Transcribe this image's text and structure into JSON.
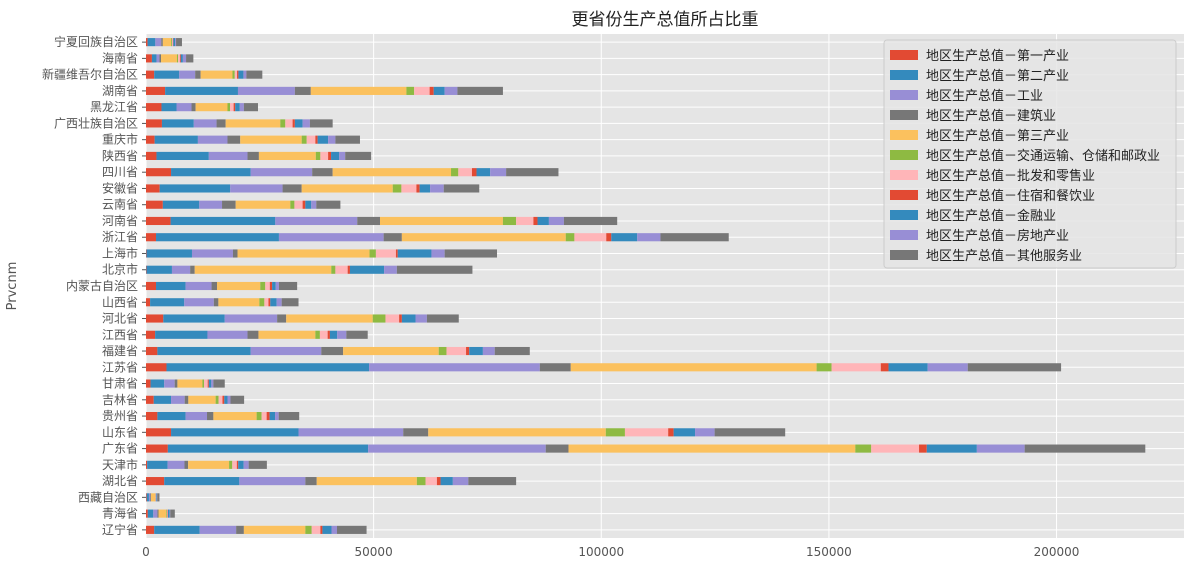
{
  "chart_data": {
    "type": "bar",
    "orientation": "horizontal",
    "stacked": true,
    "title": "更省份生产总值所占比重",
    "xlabel": "",
    "ylabel": "Prvcnm",
    "xlim": [
      0,
      228000
    ],
    "xticks": [
      0,
      50000,
      100000,
      150000,
      200000
    ],
    "grid": true,
    "legend_position": "top-right",
    "categories": [
      "辽宁省",
      "青海省",
      "西藏自治区",
      "湖北省",
      "天津市",
      "广东省",
      "山东省",
      "贵州省",
      "吉林省",
      "甘肃省",
      "江苏省",
      "福建省",
      "江西省",
      "河北省",
      "山西省",
      "内蒙古自治区",
      "北京市",
      "上海市",
      "浙江省",
      "河南省",
      "云南省",
      "安徽省",
      "四川省",
      "陕西省",
      "重庆市",
      "广西壮族自治区",
      "黑龙江省",
      "湖南省",
      "新疆维吾尔自治区",
      "海南省",
      "宁夏回族自治区"
    ],
    "series": [
      {
        "name": "地区生产总值－第一产业",
        "color": "#E24A33",
        "values": [
          1800,
          400,
          150,
          4000,
          250,
          4800,
          5500,
          2500,
          1700,
          1000,
          4500,
          2500,
          2000,
          3800,
          900,
          2200,
          100,
          100,
          2200,
          5400,
          3700,
          3000,
          5500,
          2300,
          1900,
          3500,
          3400,
          4200,
          1800,
          1300,
          350
        ]
      },
      {
        "name": "地区生产总值－第二产业",
        "color": "#348ABD",
        "values": [
          10000,
          1200,
          500,
          16500,
          4500,
          44000,
          28000,
          6200,
          3800,
          3000,
          44500,
          20500,
          11500,
          13500,
          7500,
          6500,
          5600,
          10000,
          27000,
          23000,
          8000,
          15500,
          17500,
          11500,
          9500,
          7000,
          3300,
          16000,
          5500,
          1000,
          1700
        ]
      },
      {
        "name": "地区生产总值－工业",
        "color": "#988ED5",
        "values": [
          8000,
          900,
          300,
          14500,
          3700,
          39000,
          23000,
          4700,
          3000,
          2300,
          37500,
          15500,
          8800,
          11500,
          6500,
          5700,
          4000,
          9000,
          23000,
          18000,
          5000,
          11500,
          13500,
          8500,
          6500,
          5000,
          3300,
          12500,
          3500,
          650,
          1300
        ]
      },
      {
        "name": "地区生产总值－建筑业",
        "color": "#777777",
        "values": [
          1700,
          250,
          150,
          2500,
          800,
          5000,
          5500,
          1400,
          800,
          600,
          6800,
          4800,
          2400,
          2000,
          1000,
          1200,
          1000,
          1000,
          4000,
          5000,
          3000,
          4200,
          4500,
          2500,
          2800,
          2000,
          900,
          3500,
          1200,
          350,
          350
        ]
      },
      {
        "name": "地区生产总值－第三产业",
        "color": "#FBC15E",
        "values": [
          13500,
          1700,
          900,
          22000,
          9000,
          63000,
          39000,
          9500,
          6000,
          5500,
          54000,
          21000,
          12500,
          19000,
          9000,
          9500,
          30000,
          29000,
          36000,
          27000,
          12000,
          20000,
          26000,
          12500,
          13500,
          12000,
          7000,
          21000,
          7000,
          3500,
          1800
        ]
      },
      {
        "name": "地区生产总值－交通运输、仓储和邮政业",
        "color": "#8EBA42",
        "values": [
          1400,
          150,
          60,
          1900,
          700,
          3500,
          4200,
          1100,
          650,
          350,
          3300,
          1700,
          1000,
          2800,
          1100,
          1100,
          900,
          1400,
          1900,
          2900,
          900,
          1900,
          1600,
          1000,
          1100,
          1100,
          550,
          1700,
          500,
          250,
          200
        ]
      },
      {
        "name": "地区生产总值－批发和零售业",
        "color": "#FFB5B8",
        "values": [
          1900,
          150,
          100,
          2500,
          1000,
          10500,
          9500,
          1100,
          850,
          800,
          10800,
          4300,
          1700,
          3000,
          900,
          1000,
          2700,
          4400,
          7000,
          3800,
          1800,
          3300,
          3000,
          1700,
          1900,
          1600,
          800,
          3400,
          500,
          400,
          200
        ]
      },
      {
        "name": "地区生产总值－住宿和餐饮业",
        "color": "#E24A33",
        "values": [
          450,
          80,
          50,
          800,
          300,
          1700,
          1200,
          650,
          400,
          250,
          1700,
          700,
          500,
          600,
          400,
          500,
          500,
          400,
          1100,
          900,
          600,
          700,
          1000,
          650,
          500,
          500,
          350,
          900,
          300,
          200,
          100
        ]
      },
      {
        "name": "地区生产总值－金融业",
        "color": "#348ABD",
        "values": [
          2000,
          350,
          150,
          2700,
          1200,
          11000,
          4700,
          1200,
          700,
          550,
          8600,
          3000,
          1600,
          3000,
          1400,
          800,
          7500,
          7400,
          5700,
          2500,
          1300,
          2300,
          3000,
          1800,
          2300,
          1700,
          1000,
          2400,
          1100,
          450,
          400
        ]
      },
      {
        "name": "地区生产总值－房地产业",
        "color": "#988ED5",
        "values": [
          1200,
          150,
          100,
          3400,
          1100,
          10500,
          4300,
          800,
          650,
          450,
          8800,
          2600,
          2000,
          2500,
          1100,
          700,
          2800,
          2900,
          5100,
          3300,
          1100,
          3000,
          3500,
          1300,
          1600,
          1600,
          900,
          2800,
          650,
          700,
          200
        ]
      },
      {
        "name": "地区生产总值－其他服务业",
        "color": "#777777",
        "values": [
          6500,
          1000,
          500,
          10500,
          4000,
          26500,
          15500,
          4500,
          3000,
          2500,
          20500,
          7700,
          4700,
          7000,
          3700,
          4000,
          16600,
          11500,
          15000,
          11700,
          5300,
          7800,
          11500,
          5700,
          5400,
          5000,
          3100,
          10000,
          3500,
          1600,
          1300
        ]
      }
    ]
  }
}
